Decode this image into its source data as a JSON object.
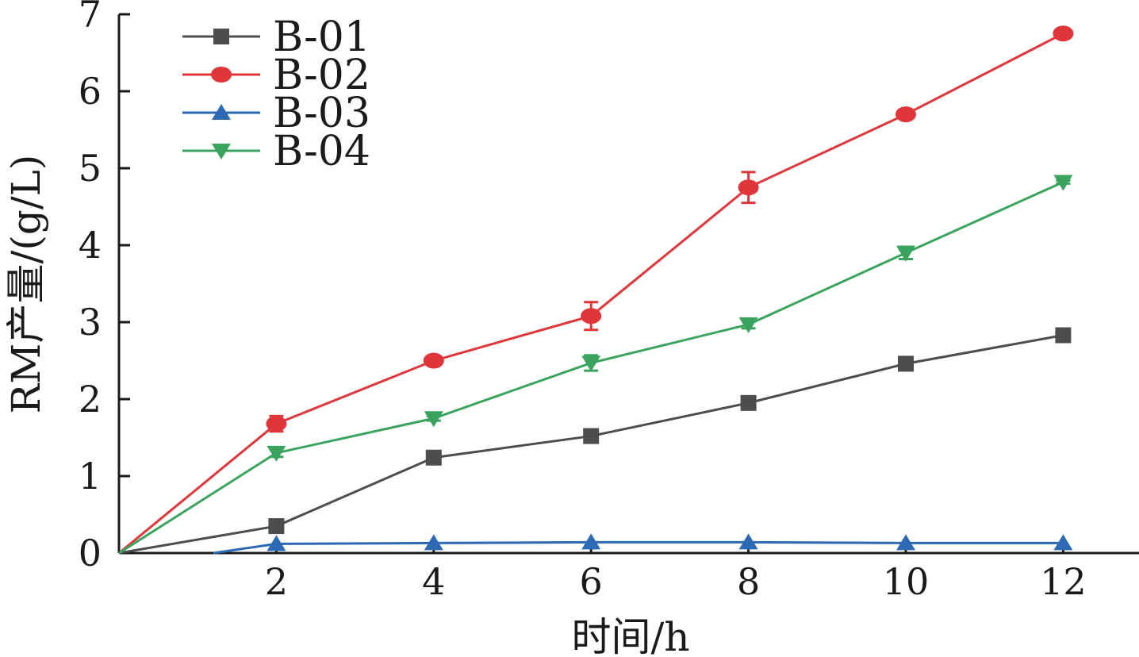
{
  "chart_data": {
    "type": "line",
    "xlabel": "时间/h",
    "ylabel": "RM产量/(g/L)",
    "xlim": [
      0,
      13
    ],
    "ylim": [
      0,
      7
    ],
    "x_ticks": [
      2,
      4,
      6,
      8,
      10,
      12
    ],
    "y_ticks": [
      0,
      1,
      2,
      3,
      4,
      5,
      6,
      7
    ],
    "legend_position": "top-left",
    "series": [
      {
        "name": "B-01",
        "color": "#4d4d4d",
        "marker": "square",
        "x": [
          0,
          2,
          4,
          6,
          8,
          10,
          12
        ],
        "values": [
          0,
          0.35,
          1.24,
          1.52,
          1.95,
          2.46,
          2.83
        ],
        "errors": [
          0,
          0,
          0,
          0,
          0,
          0,
          0
        ]
      },
      {
        "name": "B-02",
        "color": "#e0363a",
        "marker": "circle",
        "x": [
          0,
          2,
          4,
          6,
          8,
          10,
          12
        ],
        "values": [
          0,
          1.68,
          2.5,
          3.08,
          4.75,
          5.7,
          6.75
        ],
        "errors": [
          0,
          0.1,
          0.03,
          0.18,
          0.2,
          0.02,
          0.02
        ]
      },
      {
        "name": "B-03",
        "color": "#2e6ab4",
        "marker": "triangle-up",
        "x": [
          1.2,
          2,
          4,
          6,
          8,
          10,
          12
        ],
        "values": [
          0,
          0.12,
          0.13,
          0.14,
          0.14,
          0.13,
          0.13
        ],
        "errors": [
          0,
          0,
          0,
          0,
          0,
          0,
          0
        ]
      },
      {
        "name": "B-04",
        "color": "#3aa35e",
        "marker": "triangle-down",
        "x": [
          0,
          2,
          4,
          6,
          8,
          10,
          12
        ],
        "values": [
          0,
          1.3,
          1.75,
          2.47,
          2.97,
          3.9,
          4.82
        ],
        "errors": [
          0,
          0.05,
          0.03,
          0.1,
          0.05,
          0.08,
          0.02
        ]
      }
    ]
  }
}
